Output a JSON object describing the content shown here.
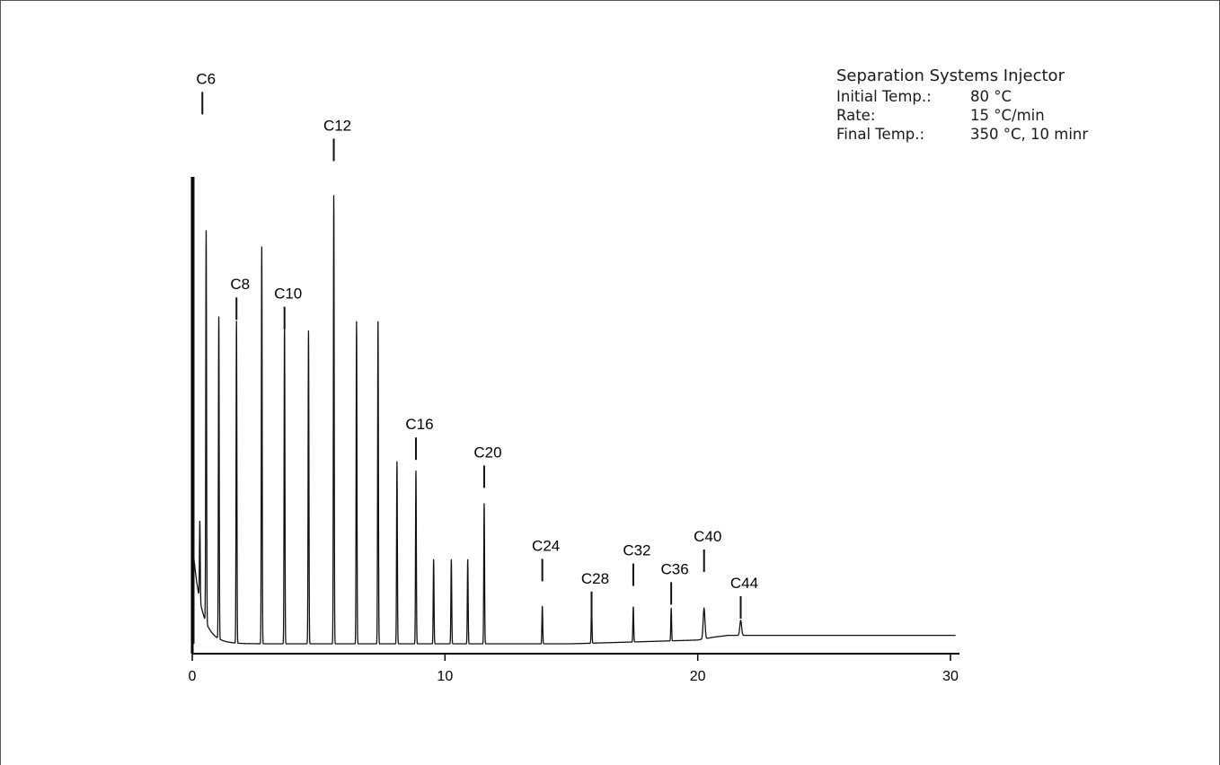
{
  "info_panel": {
    "title": "Separation Systems Injector",
    "rows": [
      {
        "key": "Initial Temp.:",
        "value": "80 °C"
      },
      {
        "key": "Rate:",
        "value": "15 °C/min"
      },
      {
        "key": "Final Temp.:",
        "value": "350 °C, 10 minr"
      }
    ]
  },
  "chart_data": {
    "type": "line",
    "title": "",
    "xlabel": "",
    "ylabel": "",
    "xlim": [
      0,
      30.5
    ],
    "ylim": [
      0,
      100
    ],
    "grid": false,
    "x_ticks": [
      0,
      10,
      20,
      30
    ],
    "x_tick_labels": [
      "0",
      "10",
      "20",
      "30"
    ],
    "baseline": [
      [
        0,
        0
      ],
      [
        15,
        0
      ],
      [
        20,
        0.8
      ],
      [
        20.6,
        1.4
      ],
      [
        21.2,
        1.8
      ],
      [
        30.2,
        1.8
      ]
    ],
    "solvent_front": {
      "x": 0.0,
      "height": 100
    },
    "peaks": [
      {
        "x": 0.3,
        "height": 17
      },
      {
        "x": 0.55,
        "height": 84
      },
      {
        "x": 1.05,
        "height": 69
      },
      {
        "x": 1.75,
        "height": 69
      },
      {
        "x": 2.75,
        "height": 85
      },
      {
        "x": 3.65,
        "height": 69
      },
      {
        "x": 4.6,
        "height": 67
      },
      {
        "x": 5.6,
        "height": 96
      },
      {
        "x": 6.5,
        "height": 69
      },
      {
        "x": 7.35,
        "height": 69
      },
      {
        "x": 8.1,
        "height": 39
      },
      {
        "x": 8.85,
        "height": 37
      },
      {
        "x": 9.55,
        "height": 18
      },
      {
        "x": 10.25,
        "height": 18
      },
      {
        "x": 10.9,
        "height": 18
      },
      {
        "x": 11.55,
        "height": 30
      },
      {
        "x": 13.85,
        "height": 8
      },
      {
        "x": 15.8,
        "height": 8
      },
      {
        "x": 17.45,
        "height": 7.5
      },
      {
        "x": 18.95,
        "height": 7
      },
      {
        "x": 20.25,
        "height": 6.5
      },
      {
        "x": 21.7,
        "height": 3.2
      }
    ],
    "peak_labels": [
      {
        "label": "C6",
        "x": 0.4,
        "label_y": 118
      },
      {
        "label": "C8",
        "x": 1.75,
        "label_y": 74
      },
      {
        "label": "C10",
        "x": 3.65,
        "label_y": 72
      },
      {
        "label": "C12",
        "x": 5.6,
        "label_y": 108
      },
      {
        "label": "C16",
        "x": 8.85,
        "label_y": 44
      },
      {
        "label": "C20",
        "x": 11.55,
        "label_y": 38
      },
      {
        "label": "C24",
        "x": 13.85,
        "label_y": 18
      },
      {
        "label": "C28",
        "x": 15.8,
        "label_y": 11
      },
      {
        "label": "C32",
        "x": 17.45,
        "label_y": 17
      },
      {
        "label": "C36",
        "x": 18.95,
        "label_y": 13
      },
      {
        "label": "C40",
        "x": 20.25,
        "label_y": 20
      },
      {
        "label": "C44",
        "x": 21.7,
        "label_y": 10
      }
    ],
    "colors": {
      "trace": "#111111",
      "axis": "#000000"
    }
  }
}
